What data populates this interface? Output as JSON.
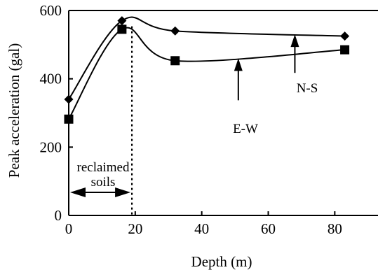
{
  "chart_data": {
    "type": "line",
    "title": "",
    "xlabel": "Depth (m)",
    "ylabel": "Peak acceleration (gal)",
    "xlim": [
      0,
      93
    ],
    "ylim": [
      0,
      600
    ],
    "xticks": [
      "0",
      "20",
      "40",
      "60",
      "80"
    ],
    "yticks": [
      "0",
      "200",
      "400",
      "600"
    ],
    "grid": false,
    "legend": "none",
    "series": [
      {
        "name": "N-S",
        "marker": "diamond",
        "x": [
          0,
          16,
          32,
          83
        ],
        "y": [
          340,
          570,
          540,
          525
        ]
      },
      {
        "name": "E-W",
        "marker": "square",
        "x": [
          0,
          16,
          32,
          83
        ],
        "y": [
          282,
          545,
          453,
          485
        ]
      }
    ],
    "annotations": {
      "region_line_x": 19,
      "region_label_line1": "reclaimed",
      "region_label_line2": "soils",
      "ns_arrow": {
        "x": 68,
        "y": 530
      },
      "ew_arrow": {
        "x": 51,
        "y": 460
      }
    },
    "colors": {
      "line": "#000000",
      "background": "#ffffff"
    }
  }
}
